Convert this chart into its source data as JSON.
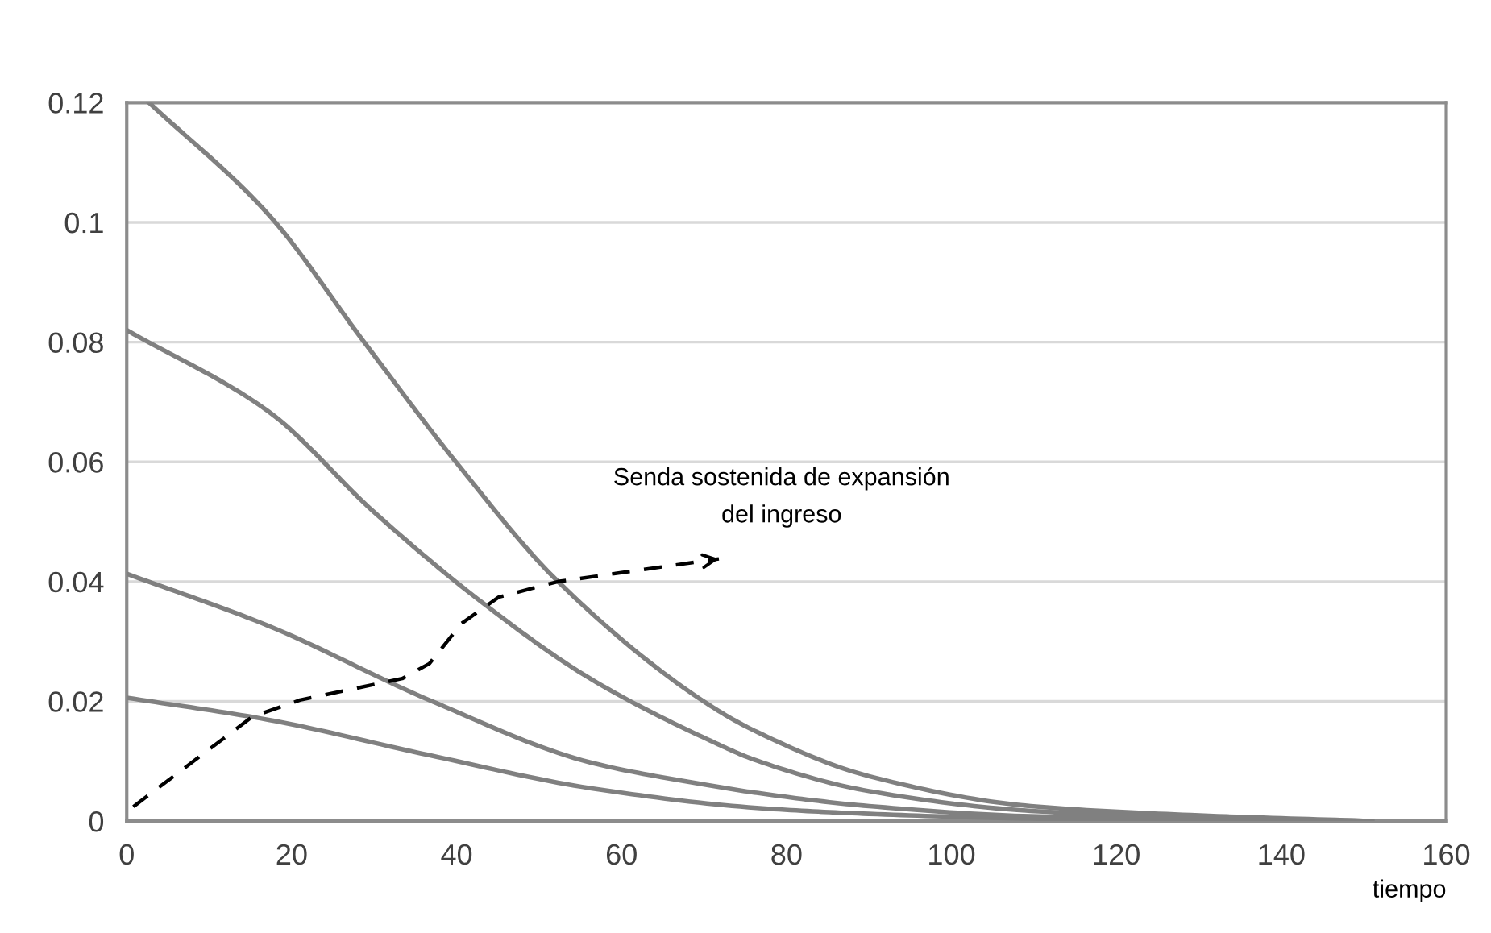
{
  "chart_data": {
    "type": "line",
    "xlabel": "tiempo",
    "xlim": [
      0,
      160
    ],
    "ylim": [
      0,
      0.12
    ],
    "xticks": [
      0,
      20,
      40,
      60,
      80,
      100,
      120,
      140,
      160
    ],
    "yticks": [
      0,
      0.02,
      0.04,
      0.06,
      0.08,
      0.1,
      0.12
    ],
    "grid": "y",
    "legend": false,
    "marker": "none",
    "series": [
      {
        "color": "#808080",
        "line_style": "solid",
        "x": [
          2.7,
          17.2,
          28.9,
          39.9,
          52.3,
          70.5,
          76.4,
          90,
          109.6,
          129,
          151
        ],
        "values": [
          0.12,
          0.1013,
          0.0798,
          0.06,
          0.04,
          0.0195,
          0.0149,
          0.0075,
          0.0025,
          0.001,
          0
        ]
      },
      {
        "color": "#808080",
        "line_style": "solid",
        "x": [
          0,
          17.2,
          30,
          43.2,
          56.2,
          70.5,
          76.4,
          90,
          109.6,
          129,
          151
        ],
        "values": [
          0.082,
          0.0684,
          0.0516,
          0.0364,
          0.0238,
          0.0136,
          0.0101,
          0.005,
          0.0017,
          0.0006,
          0
        ]
      },
      {
        "color": "#808080",
        "line_style": "solid",
        "x": [
          0,
          17.2,
          36.7,
          56.2,
          70.5,
          76.4,
          90,
          109.6,
          129,
          151
        ],
        "values": [
          0.0413,
          0.0326,
          0.0202,
          0.0098,
          0.006,
          0.0047,
          0.0025,
          0.0008,
          0.0003,
          0
        ]
      },
      {
        "color": "#808080",
        "line_style": "solid",
        "x": [
          0,
          17.2,
          36.7,
          56.2,
          76.4,
          90,
          109.6,
          129,
          151
        ],
        "values": [
          0.0206,
          0.0169,
          0.011,
          0.0055,
          0.0022,
          0.0012,
          0.0004,
          0.0001,
          0
        ]
      },
      {
        "name": "Senda sostenida de expansión\ndel ingreso",
        "color": "#000000",
        "line_style": "dashed",
        "x": [
          0.8,
          15.2,
          21,
          33.4,
          36.7,
          40.6,
          45.1,
          52.3,
          71.8
        ],
        "values": [
          0.0024,
          0.0174,
          0.0202,
          0.0238,
          0.0263,
          0.033,
          0.0374,
          0.04,
          0.0438
        ]
      }
    ]
  }
}
